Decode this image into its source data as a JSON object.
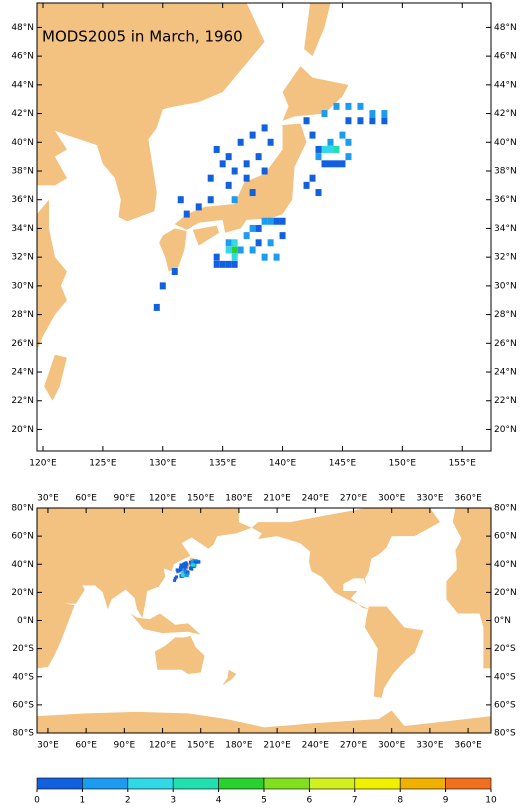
{
  "title": "MODS2005 in March, 1960",
  "maps": [
    {
      "xlim": [
        119.5,
        157.4
      ],
      "ylim": [
        18.5,
        49.7
      ],
      "xticks": [
        {
          "value": 120,
          "label": "120°E"
        },
        {
          "value": 125,
          "label": "125°E"
        },
        {
          "value": 130,
          "label": "130°E"
        },
        {
          "value": 135,
          "label": "135°E"
        },
        {
          "value": 140,
          "label": "140°E"
        },
        {
          "value": 145,
          "label": "145°E"
        },
        {
          "value": 150,
          "label": "150°E"
        },
        {
          "value": 155,
          "label": "155°E"
        }
      ],
      "yticks": [
        {
          "value": 20,
          "label": "20°N"
        },
        {
          "value": 22,
          "label": "22°N"
        },
        {
          "value": 24,
          "label": "24°N"
        },
        {
          "value": 26,
          "label": "26°N"
        },
        {
          "value": 28,
          "label": "28°N"
        },
        {
          "value": 30,
          "label": "30°N"
        },
        {
          "value": 32,
          "label": "32°N"
        },
        {
          "value": 34,
          "label": "34°N"
        },
        {
          "value": 36,
          "label": "36°N"
        },
        {
          "value": 38,
          "label": "38°N"
        },
        {
          "value": 40,
          "label": "40°N"
        },
        {
          "value": 42,
          "label": "42°N"
        },
        {
          "value": 44,
          "label": "44°N"
        },
        {
          "value": 46,
          "label": "46°N"
        },
        {
          "value": 48,
          "label": "48°N"
        }
      ]
    },
    {
      "xlim": [
        21.4,
        378
      ],
      "ylim": [
        -80,
        80
      ],
      "xticks": [
        {
          "value": 30,
          "label": "30°E"
        },
        {
          "value": 60,
          "label": "60°E"
        },
        {
          "value": 90,
          "label": "90°E"
        },
        {
          "value": 120,
          "label": "120°E"
        },
        {
          "value": 150,
          "label": "150°E"
        },
        {
          "value": 180,
          "label": "180°E"
        },
        {
          "value": 210,
          "label": "210°E"
        },
        {
          "value": 240,
          "label": "240°E"
        },
        {
          "value": 270,
          "label": "270°E"
        },
        {
          "value": 300,
          "label": "300°E"
        },
        {
          "value": 330,
          "label": "330°E"
        },
        {
          "value": 360,
          "label": "360°E"
        }
      ],
      "yticks": [
        {
          "value": -80,
          "label": "80°S"
        },
        {
          "value": -60,
          "label": "60°S"
        },
        {
          "value": -40,
          "label": "40°S"
        },
        {
          "value": -20,
          "label": "20°S"
        },
        {
          "value": 0,
          "label": "0°N"
        },
        {
          "value": 20,
          "label": "20°N"
        },
        {
          "value": 40,
          "label": "40°N"
        },
        {
          "value": 60,
          "label": "60°N"
        },
        {
          "value": 80,
          "label": "80°N"
        }
      ]
    }
  ],
  "points": [
    {
      "lon": 134.5,
      "lat": 39.5,
      "value": 0.5
    },
    {
      "lon": 135.5,
      "lat": 39,
      "value": 0.5
    },
    {
      "lon": 136.5,
      "lat": 40,
      "value": 0.5
    },
    {
      "lon": 137.5,
      "lat": 40.5,
      "value": 0.5
    },
    {
      "lon": 138.5,
      "lat": 41,
      "value": 0.5
    },
    {
      "lon": 139,
      "lat": 40,
      "value": 0.5
    },
    {
      "lon": 138,
      "lat": 39,
      "value": 0.5
    },
    {
      "lon": 137,
      "lat": 38.5,
      "value": 0.5
    },
    {
      "lon": 136,
      "lat": 38,
      "value": 0.5
    },
    {
      "lon": 135,
      "lat": 38.5,
      "value": 0.5
    },
    {
      "lon": 134,
      "lat": 37.5,
      "value": 0.5
    },
    {
      "lon": 135.5,
      "lat": 37,
      "value": 0.5
    },
    {
      "lon": 137,
      "lat": 37.5,
      "value": 0.5
    },
    {
      "lon": 138.5,
      "lat": 38,
      "value": 0.5
    },
    {
      "lon": 137.5,
      "lat": 36.5,
      "value": 0.5
    },
    {
      "lon": 136,
      "lat": 36,
      "value": 1.5
    },
    {
      "lon": 134,
      "lat": 36,
      "value": 0.5
    },
    {
      "lon": 133,
      "lat": 35.5,
      "value": 0.5
    },
    {
      "lon": 131.5,
      "lat": 36,
      "value": 0.5
    },
    {
      "lon": 132,
      "lat": 35,
      "value": 0.5
    },
    {
      "lon": 131,
      "lat": 31,
      "value": 0.5
    },
    {
      "lon": 130,
      "lat": 30,
      "value": 0.5
    },
    {
      "lon": 129.5,
      "lat": 28.5,
      "value": 0.5
    },
    {
      "lon": 134.5,
      "lat": 32,
      "value": 0.5
    },
    {
      "lon": 134.5,
      "lat": 31.5,
      "value": 0.5
    },
    {
      "lon": 135,
      "lat": 31.5,
      "value": 0.5
    },
    {
      "lon": 135.5,
      "lat": 31.5,
      "value": 0.5
    },
    {
      "lon": 136,
      "lat": 31.5,
      "value": 0.5
    },
    {
      "lon": 135.5,
      "lat": 33,
      "value": 1.5
    },
    {
      "lon": 136.5,
      "lat": 32.5,
      "value": 1.5
    },
    {
      "lon": 137,
      "lat": 33.5,
      "value": 1.5
    },
    {
      "lon": 137.5,
      "lat": 34,
      "value": 1.5
    },
    {
      "lon": 138,
      "lat": 34,
      "value": 0.5
    },
    {
      "lon": 138.5,
      "lat": 34.5,
      "value": 1.5
    },
    {
      "lon": 139,
      "lat": 34.5,
      "value": 1.5
    },
    {
      "lon": 139.5,
      "lat": 34.5,
      "value": 0.5
    },
    {
      "lon": 140,
      "lat": 34.5,
      "value": 0.5
    },
    {
      "lon": 140,
      "lat": 33.5,
      "value": 0.5
    },
    {
      "lon": 139,
      "lat": 33,
      "value": 1.5
    },
    {
      "lon": 138,
      "lat": 33,
      "value": 0.5
    },
    {
      "lon": 137.5,
      "lat": 32.5,
      "value": 1.5
    },
    {
      "lon": 138.5,
      "lat": 32,
      "value": 1.5
    },
    {
      "lon": 139.5,
      "lat": 32,
      "value": 1.5
    },
    {
      "lon": 136,
      "lat": 33,
      "value": 2.5
    },
    {
      "lon": 136,
      "lat": 32.5,
      "value": 4.5
    },
    {
      "lon": 136,
      "lat": 32,
      "value": 2.5
    },
    {
      "lon": 135.5,
      "lat": 32.5,
      "value": 2.5
    },
    {
      "lon": 142,
      "lat": 41.5,
      "value": 0.5
    },
    {
      "lon": 142.5,
      "lat": 40.5,
      "value": 0.5
    },
    {
      "lon": 143,
      "lat": 39.5,
      "value": 0.5
    },
    {
      "lon": 143.5,
      "lat": 38.5,
      "value": 0.5
    },
    {
      "lon": 144,
      "lat": 38.5,
      "value": 0.5
    },
    {
      "lon": 144.5,
      "lat": 38.5,
      "value": 0.5
    },
    {
      "lon": 145,
      "lat": 38.5,
      "value": 0.5
    },
    {
      "lon": 145.5,
      "lat": 39,
      "value": 1.5
    },
    {
      "lon": 145.5,
      "lat": 40,
      "value": 1.5
    },
    {
      "lon": 145,
      "lat": 40.5,
      "value": 1.5
    },
    {
      "lon": 144,
      "lat": 40,
      "value": 1.5
    },
    {
      "lon": 143,
      "lat": 39,
      "value": 1.5
    },
    {
      "lon": 142.5,
      "lat": 37.5,
      "value": 0.5
    },
    {
      "lon": 142,
      "lat": 37,
      "value": 0.5
    },
    {
      "lon": 143,
      "lat": 36.5,
      "value": 0.5
    },
    {
      "lon": 143.5,
      "lat": 42,
      "value": 1.5
    },
    {
      "lon": 144.5,
      "lat": 42.5,
      "value": 1.5
    },
    {
      "lon": 145.5,
      "lat": 42.5,
      "value": 1.5
    },
    {
      "lon": 146.5,
      "lat": 42.5,
      "value": 1.5
    },
    {
      "lon": 147.5,
      "lat": 42,
      "value": 1.5
    },
    {
      "lon": 148.5,
      "lat": 42,
      "value": 1.5
    },
    {
      "lon": 148.5,
      "lat": 41.5,
      "value": 0.5
    },
    {
      "lon": 147.5,
      "lat": 41.5,
      "value": 0.5
    },
    {
      "lon": 146.5,
      "lat": 41.5,
      "value": 0.5
    },
    {
      "lon": 145.5,
      "lat": 41.5,
      "value": 0.5
    },
    {
      "lon": 144,
      "lat": 39.5,
      "value": 2.5
    },
    {
      "lon": 143.5,
      "lat": 39.5,
      "value": 2.5
    },
    {
      "lon": 144.5,
      "lat": 39.5,
      "value": 3.5
    }
  ],
  "colorbar": {
    "ticks": [
      0,
      1,
      2,
      3,
      4,
      5,
      6,
      7,
      8,
      9,
      10
    ],
    "colors": [
      "#1060e0",
      "#1c9cf0",
      "#30d8e8",
      "#20e0b0",
      "#28d030",
      "#80e020",
      "#d0f020",
      "#f0f000",
      "#f0b000",
      "#f07020"
    ]
  }
}
